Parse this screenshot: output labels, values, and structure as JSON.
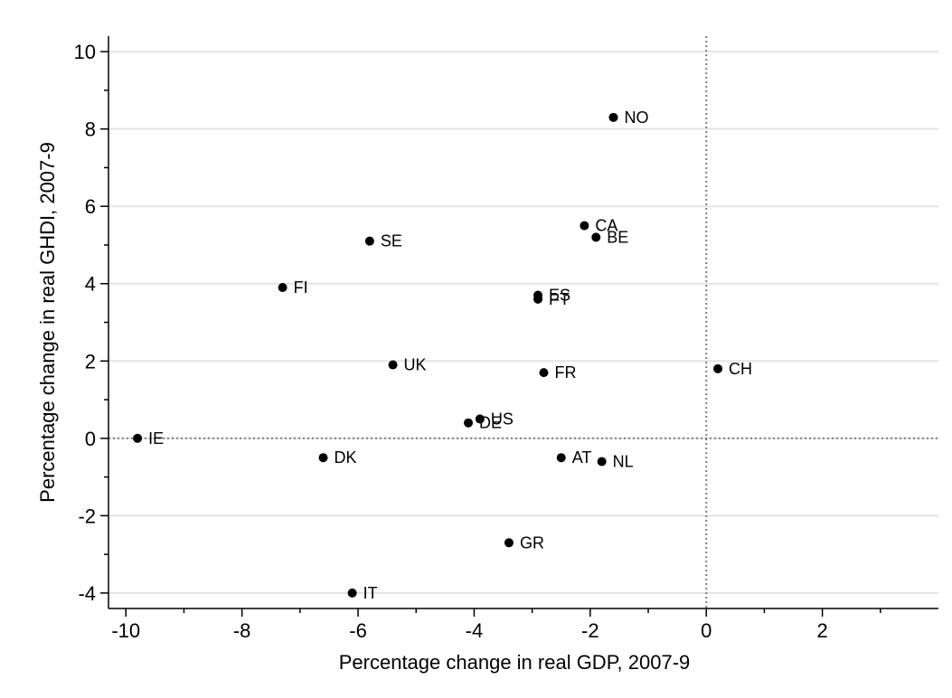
{
  "chart_data": {
    "type": "scatter",
    "title": "",
    "xlabel": "Percentage change in real GDP, 2007-9",
    "ylabel": "Percentage change in real GHDI, 2007-9",
    "xlim": [
      -10.3,
      4
    ],
    "ylim": [
      -4.4,
      10.4
    ],
    "x_ticks": [
      -10,
      -8,
      -6,
      -4,
      -2,
      0,
      2
    ],
    "x_minor_ticks": [
      -9,
      -7,
      -5,
      -3,
      -1,
      1,
      3
    ],
    "y_ticks": [
      -4,
      -2,
      0,
      2,
      4,
      6,
      8,
      10
    ],
    "y_minor_ticks": [
      -3,
      -1,
      1,
      3,
      5,
      7,
      9
    ],
    "grid": "horizontal",
    "reference_lines": {
      "x": 0,
      "y": 0
    },
    "colors": {
      "marker": "#000000",
      "gridline": "#e3e3e3",
      "reference_line": "#7f7f7f"
    },
    "points": [
      {
        "label": "NO",
        "x": -1.6,
        "y": 8.3
      },
      {
        "label": "CA",
        "x": -2.1,
        "y": 5.5
      },
      {
        "label": "BE",
        "x": -1.9,
        "y": 5.2
      },
      {
        "label": "SE",
        "x": -5.8,
        "y": 5.1
      },
      {
        "label": "FI",
        "x": -7.3,
        "y": 3.9
      },
      {
        "label": "ES",
        "x": -2.9,
        "y": 3.7
      },
      {
        "label": "PT",
        "x": -2.9,
        "y": 3.6
      },
      {
        "label": "UK",
        "x": -5.4,
        "y": 1.9
      },
      {
        "label": "FR",
        "x": -2.8,
        "y": 1.7
      },
      {
        "label": "CH",
        "x": 0.2,
        "y": 1.8
      },
      {
        "label": "US",
        "x": -3.9,
        "y": 0.5
      },
      {
        "label": "DE",
        "x": -4.1,
        "y": 0.4
      },
      {
        "label": "IE",
        "x": -9.8,
        "y": 0.0
      },
      {
        "label": "DK",
        "x": -6.6,
        "y": -0.5
      },
      {
        "label": "AT",
        "x": -2.5,
        "y": -0.5
      },
      {
        "label": "NL",
        "x": -1.8,
        "y": -0.6
      },
      {
        "label": "GR",
        "x": -3.4,
        "y": -2.7
      },
      {
        "label": "IT",
        "x": -6.1,
        "y": -4.0
      }
    ]
  }
}
